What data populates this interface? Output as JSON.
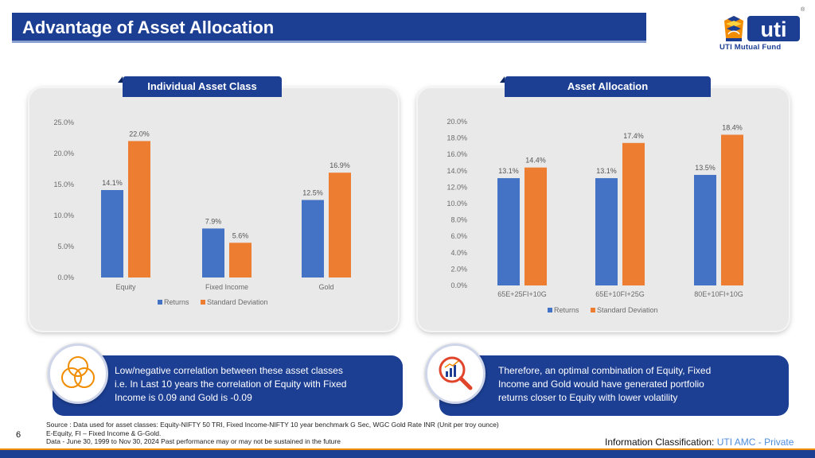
{
  "header": {
    "title": "Advantage of Asset Allocation",
    "logo_text": "UTI Mutual Fund",
    "logo_word": "uti",
    "logo_reg": "®"
  },
  "colors": {
    "brand_blue": "#1c3f94",
    "returns": "#4472c4",
    "std_dev": "#ed7d31",
    "accent_orange": "#f28c00"
  },
  "chart_data": [
    {
      "type": "bar",
      "panel_title": "Individual Asset Class",
      "categories": [
        "Equity",
        "Fixed Income",
        "Gold"
      ],
      "series": [
        {
          "name": "Returns",
          "values": [
            14.1,
            7.9,
            12.5
          ],
          "labels": [
            "14.1%",
            "7.9%",
            "12.5%"
          ]
        },
        {
          "name": "Standard Deviation",
          "values": [
            22.0,
            5.6,
            16.9
          ],
          "labels": [
            "22.0%",
            "5.6%",
            "16.9%"
          ]
        }
      ],
      "ylim": [
        0,
        25
      ],
      "yticks": [
        "0.0%",
        "5.0%",
        "10.0%",
        "15.0%",
        "20.0%",
        "25.0%"
      ],
      "legend": "bottom",
      "grid": false
    },
    {
      "type": "bar",
      "panel_title": "Asset Allocation",
      "categories": [
        "65E+25FI+10G",
        "65E+10FI+25G",
        "80E+10FI+10G"
      ],
      "series": [
        {
          "name": "Returns",
          "values": [
            13.1,
            13.1,
            13.5
          ],
          "labels": [
            "13.1%",
            "13.1%",
            "13.5%"
          ]
        },
        {
          "name": "Standard Deviation",
          "values": [
            14.4,
            17.4,
            18.4
          ],
          "labels": [
            "14.4%",
            "17.4%",
            "18.4%"
          ]
        }
      ],
      "ylim": [
        0,
        20
      ],
      "yticks": [
        "0.0%",
        "2.0%",
        "4.0%",
        "6.0%",
        "8.0%",
        "10.0%",
        "12.0%",
        "14.0%",
        "16.0%",
        "18.0%",
        "20.0%"
      ],
      "legend": "bottom",
      "grid": false
    }
  ],
  "info": {
    "left_icon": "overlapping-circles-icon",
    "left_lines": [
      "Low/negative correlation between these asset classes",
      "i.e.  In Last 10 years the correlation of  Equity with Fixed",
      "Income is 0.09 and  Gold is -0.09"
    ],
    "right_icon": "magnifier-chart-icon",
    "right_lines": [
      "Therefore, an optimal combination of Equity, Fixed",
      "Income and Gold would have generated portfolio",
      "returns closer to Equity with lower volatility"
    ]
  },
  "footer": {
    "source": "Source : Data used for asset classes: Equity-NIFTY 50 TRI, Fixed Income-NIFTY 10 year benchmark G Sec, WGC Gold Rate INR (Unit per troy ounce)",
    "abbrev": "E-Equity, FI – Fixed Income & G-Gold.",
    "data_note": "Data - June 30, 1999 to Nov 30, 2024 Past performance may or may not be sustained in the future",
    "page_number": "6",
    "classification_label": "Information Classification: ",
    "classification_value": "UTI AMC - Private"
  }
}
